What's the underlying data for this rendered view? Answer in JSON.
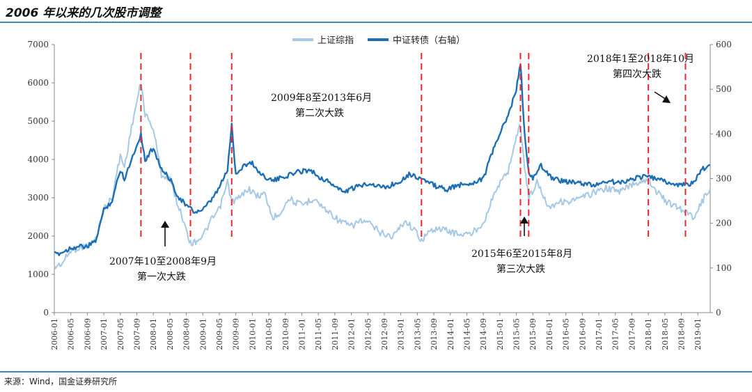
{
  "title": "2006 年以来的几次股市调整",
  "source": "来源：Wind，国金证券研究所",
  "colors": {
    "shanghai": "#a5c8e6",
    "cb_index": "#1c6fb4",
    "marker": "#e8282a",
    "rule": "#3b8bc2",
    "axis": "#888888"
  },
  "chart_data": {
    "type": "line",
    "x_start": "2006-01",
    "x_end": "2019-04",
    "xticks": [
      "2006-01",
      "2006-05",
      "2006-09",
      "2007-01",
      "2007-05",
      "2007-09",
      "2008-01",
      "2008-05",
      "2008-09",
      "2009-01",
      "2009-05",
      "2009-09",
      "2010-01",
      "2010-05",
      "2010-09",
      "2011-01",
      "2011-05",
      "2011-09",
      "2012-01",
      "2012-05",
      "2012-09",
      "2013-01",
      "2013-05",
      "2013-09",
      "2014-01",
      "2014-05",
      "2014-09",
      "2015-01",
      "2015-05",
      "2015-09",
      "2016-01",
      "2016-05",
      "2016-09",
      "2017-01",
      "2017-05",
      "2017-09",
      "2018-01",
      "2018-05",
      "2018-09",
      "2019-01"
    ],
    "y_left": {
      "min": 0,
      "max": 7000,
      "ticks": [
        0,
        1000,
        2000,
        3000,
        4000,
        5000,
        6000,
        7000
      ]
    },
    "y_right": {
      "min": 0,
      "max": 600,
      "ticks": [
        0,
        100,
        200,
        300,
        400,
        500,
        600
      ]
    },
    "series": [
      {
        "name": "上证综指",
        "axis": "left",
        "color": "#a5c8e6",
        "points": [
          [
            "2006-01",
            1180
          ],
          [
            "2006-03",
            1300
          ],
          [
            "2006-05",
            1620
          ],
          [
            "2006-07",
            1700
          ],
          [
            "2006-09",
            1750
          ],
          [
            "2006-11",
            1900
          ],
          [
            "2007-01",
            2700
          ],
          [
            "2007-03",
            3000
          ],
          [
            "2007-05",
            4100
          ],
          [
            "2007-06",
            3800
          ],
          [
            "2007-08",
            5000
          ],
          [
            "2007-10",
            6000
          ],
          [
            "2007-11",
            5200
          ],
          [
            "2008-01",
            4800
          ],
          [
            "2008-03",
            3600
          ],
          [
            "2008-05",
            3500
          ],
          [
            "2008-07",
            2800
          ],
          [
            "2008-09",
            2200
          ],
          [
            "2008-10",
            1800
          ],
          [
            "2008-11",
            1850
          ],
          [
            "2009-01",
            2000
          ],
          [
            "2009-03",
            2400
          ],
          [
            "2009-05",
            2700
          ],
          [
            "2009-07",
            3400
          ],
          [
            "2009-08",
            2900
          ],
          [
            "2009-10",
            3000
          ],
          [
            "2009-12",
            3250
          ],
          [
            "2010-02",
            3050
          ],
          [
            "2010-04",
            3100
          ],
          [
            "2010-06",
            2450
          ],
          [
            "2010-08",
            2650
          ],
          [
            "2010-10",
            3000
          ],
          [
            "2010-11",
            2900
          ],
          [
            "2011-01",
            2800
          ],
          [
            "2011-04",
            3000
          ],
          [
            "2011-06",
            2750
          ],
          [
            "2011-08",
            2600
          ],
          [
            "2011-10",
            2400
          ],
          [
            "2012-01",
            2250
          ],
          [
            "2012-03",
            2400
          ],
          [
            "2012-05",
            2350
          ],
          [
            "2012-08",
            2100
          ],
          [
            "2012-11",
            1980
          ],
          [
            "2013-02",
            2400
          ],
          [
            "2013-04",
            2200
          ],
          [
            "2013-06",
            1900
          ],
          [
            "2013-09",
            2200
          ],
          [
            "2013-12",
            2150
          ],
          [
            "2014-03",
            2050
          ],
          [
            "2014-06",
            2050
          ],
          [
            "2014-09",
            2350
          ],
          [
            "2014-12",
            3200
          ],
          [
            "2015-03",
            3700
          ],
          [
            "2015-05",
            4600
          ],
          [
            "2015-06",
            4900
          ],
          [
            "2015-07",
            3800
          ],
          [
            "2015-08",
            3000
          ],
          [
            "2015-10",
            3400
          ],
          [
            "2016-01",
            2750
          ],
          [
            "2016-03",
            2900
          ],
          [
            "2016-06",
            2900
          ],
          [
            "2016-09",
            3000
          ],
          [
            "2016-12",
            3150
          ],
          [
            "2017-03",
            3250
          ],
          [
            "2017-06",
            3150
          ],
          [
            "2017-09",
            3350
          ],
          [
            "2018-01",
            3500
          ],
          [
            "2018-03",
            3150
          ],
          [
            "2018-06",
            2850
          ],
          [
            "2018-09",
            2700
          ],
          [
            "2018-12",
            2500
          ],
          [
            "2019-02",
            2900
          ],
          [
            "2019-04",
            3250
          ]
        ]
      },
      {
        "name": "中证转债（右轴）",
        "axis": "right",
        "color": "#1c6fb4",
        "points": [
          [
            "2006-01",
            130
          ],
          [
            "2006-03",
            135
          ],
          [
            "2006-05",
            145
          ],
          [
            "2006-07",
            148
          ],
          [
            "2006-09",
            147
          ],
          [
            "2006-11",
            160
          ],
          [
            "2007-01",
            230
          ],
          [
            "2007-03",
            250
          ],
          [
            "2007-05",
            320
          ],
          [
            "2007-06",
            300
          ],
          [
            "2007-08",
            350
          ],
          [
            "2007-10",
            400
          ],
          [
            "2007-11",
            340
          ],
          [
            "2008-01",
            370
          ],
          [
            "2008-03",
            320
          ],
          [
            "2008-05",
            300
          ],
          [
            "2008-07",
            260
          ],
          [
            "2008-09",
            240
          ],
          [
            "2008-11",
            225
          ],
          [
            "2009-01",
            230
          ],
          [
            "2009-03",
            250
          ],
          [
            "2009-05",
            280
          ],
          [
            "2009-07",
            320
          ],
          [
            "2009-08",
            420
          ],
          [
            "2009-09",
            310
          ],
          [
            "2009-11",
            330
          ],
          [
            "2010-01",
            335
          ],
          [
            "2010-03",
            310
          ],
          [
            "2010-06",
            295
          ],
          [
            "2010-09",
            305
          ],
          [
            "2010-12",
            315
          ],
          [
            "2011-03",
            320
          ],
          [
            "2011-05",
            305
          ],
          [
            "2011-08",
            290
          ],
          [
            "2011-11",
            270
          ],
          [
            "2012-02",
            280
          ],
          [
            "2012-05",
            290
          ],
          [
            "2012-09",
            280
          ],
          [
            "2012-12",
            290
          ],
          [
            "2013-03",
            310
          ],
          [
            "2013-06",
            300
          ],
          [
            "2013-09",
            285
          ],
          [
            "2013-12",
            275
          ],
          [
            "2014-03",
            285
          ],
          [
            "2014-06",
            290
          ],
          [
            "2014-09",
            300
          ],
          [
            "2014-12",
            380
          ],
          [
            "2015-03",
            440
          ],
          [
            "2015-05",
            500
          ],
          [
            "2015-06",
            560
          ],
          [
            "2015-07",
            400
          ],
          [
            "2015-08",
            310
          ],
          [
            "2015-09",
            300
          ],
          [
            "2015-11",
            330
          ],
          [
            "2016-01",
            305
          ],
          [
            "2016-04",
            295
          ],
          [
            "2016-08",
            290
          ],
          [
            "2016-12",
            285
          ],
          [
            "2017-03",
            295
          ],
          [
            "2017-06",
            290
          ],
          [
            "2017-09",
            300
          ],
          [
            "2017-12",
            305
          ],
          [
            "2018-03",
            300
          ],
          [
            "2018-06",
            290
          ],
          [
            "2018-09",
            285
          ],
          [
            "2018-12",
            290
          ],
          [
            "2019-02",
            320
          ],
          [
            "2019-04",
            330
          ]
        ]
      }
    ],
    "markers": [
      "2007-10",
      "2008-10",
      "2009-08",
      "2013-06",
      "2015-06",
      "2015-08",
      "2018-01",
      "2018-10"
    ],
    "annotations": [
      {
        "lines": [
          "2007年10至2008年9月",
          "第一次大跌"
        ]
      },
      {
        "lines": [
          "2009年8至2013年6月",
          "第二次大跌"
        ]
      },
      {
        "lines": [
          "2015年6至2015年8月",
          "第三次大跌"
        ]
      },
      {
        "lines": [
          "2018年1至2018年10月",
          "第四次大跌"
        ]
      }
    ]
  }
}
